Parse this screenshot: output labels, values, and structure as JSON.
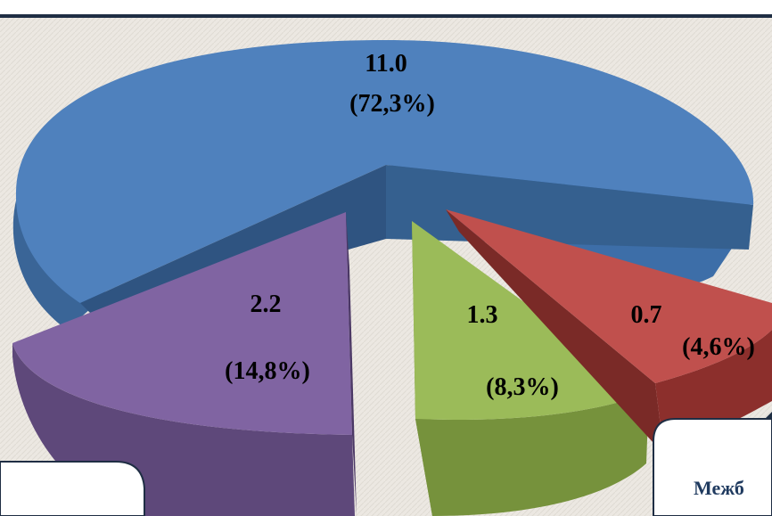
{
  "colors": {
    "background": "#ece8e2",
    "frame": "#1f2e44",
    "slice_blue": "#4f81bd",
    "slice_purple": "#8064a2",
    "slice_green": "#9bbb59",
    "slice_red": "#c0504d"
  },
  "chart_data": {
    "type": "pie",
    "style": "3d-exploded",
    "title": "",
    "slices": [
      {
        "value": 11.0,
        "value_label": "11.0",
        "percent_label": "(72,3%)",
        "color": "#4f81bd"
      },
      {
        "value": 0.7,
        "value_label": "0.7",
        "percent_label": "(4,6%)",
        "color": "#c0504d"
      },
      {
        "value": 1.3,
        "value_label": "1.3",
        "percent_label": "(8,3%)",
        "color": "#9bbb59"
      },
      {
        "value": 2.2,
        "value_label": "2.2",
        "percent_label": "(14,8%)",
        "color": "#8064a2"
      }
    ]
  },
  "callout_right": {
    "text": "Межб"
  }
}
